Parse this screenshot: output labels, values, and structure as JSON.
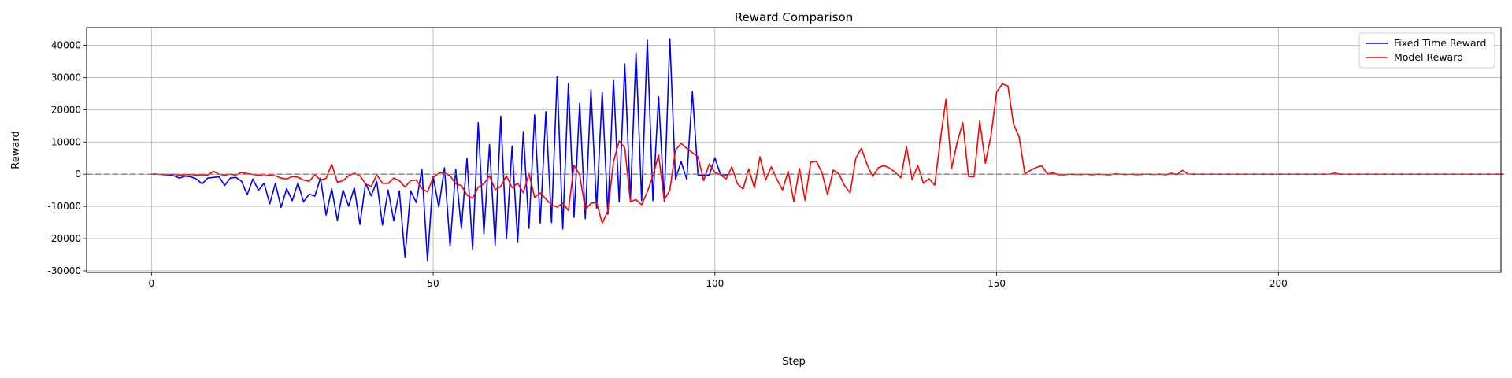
{
  "chart_data": {
    "type": "line",
    "title": "Reward Comparison",
    "xlabel": "Step",
    "ylabel": "Reward",
    "xlim": [
      -11.5,
      239.5
    ],
    "ylim": [
      -30500,
      45500
    ],
    "xticks": [
      0,
      50,
      100,
      150,
      200
    ],
    "yticks": [
      -30000,
      -20000,
      -10000,
      0,
      10000,
      20000,
      30000,
      40000
    ],
    "grid": true,
    "legend_position": "top-right",
    "reference_line": {
      "y": 0,
      "style": "dashed",
      "color": "#808080"
    },
    "series": [
      {
        "name": "Fixed Time Reward",
        "color": "#0000ff",
        "x_start": 0,
        "values": [
          0,
          0,
          -100,
          -300,
          -500,
          -1200,
          -600,
          -800,
          -1500,
          -3000,
          -1200,
          -1000,
          -800,
          -3500,
          -1200,
          -1000,
          -2200,
          -6400,
          -1500,
          -5000,
          -2800,
          -9200,
          -2800,
          -10300,
          -4500,
          -8200,
          -2700,
          -8600,
          -6200,
          -6800,
          -1200,
          -12700,
          -4500,
          -14300,
          -4900,
          -9900,
          -4200,
          -15600,
          -2800,
          -6700,
          -2300,
          -15800,
          -4900,
          -14400,
          -5200,
          -25700,
          -5200,
          -8800,
          1500,
          -26900,
          -800,
          -10200,
          2000,
          -22400,
          1500,
          -16900,
          5000,
          -23300,
          16000,
          -18500,
          9200,
          -22000,
          18000,
          -20100,
          8700,
          -21000,
          13200,
          -16800,
          18400,
          -15200,
          19400,
          -15000,
          30400,
          -17000,
          28100,
          -13400,
          22000,
          -13800,
          26200,
          -10500,
          25400,
          -12400,
          29300,
          -8500,
          34200,
          -8100,
          37700,
          -8200,
          41600,
          -8200,
          24100,
          -8300,
          42000,
          -1600,
          3900,
          -1600,
          25600,
          -300,
          -300,
          -300,
          5100,
          -200,
          -200,
          0
        ]
      },
      {
        "name": "Model Reward",
        "color": "#ff0000",
        "x_start": 0,
        "values": [
          0,
          0,
          -100,
          -200,
          0,
          -300,
          -200,
          -100,
          -300,
          -200,
          -300,
          900,
          0,
          -300,
          0,
          -300,
          500,
          200,
          -100,
          -300,
          -500,
          -300,
          -500,
          -1200,
          -1500,
          -700,
          -900,
          -1800,
          -2200,
          -200,
          -1800,
          -1300,
          3100,
          -2500,
          -2000,
          -500,
          300,
          -500,
          -3000,
          -3800,
          -200,
          -2800,
          -2900,
          -1200,
          -2000,
          -4000,
          -2000,
          -1800,
          -4500,
          -5500,
          -1000,
          300,
          500,
          -500,
          -3000,
          -3500,
          -6500,
          -7500,
          -4000,
          -3000,
          -500,
          -4800,
          -3800,
          -500,
          -4200,
          -2800,
          -5800,
          200,
          -7200,
          -5800,
          -7700,
          -9500,
          -10200,
          -9000,
          -11300,
          2800,
          -200,
          -11000,
          -9000,
          -8800,
          -15200,
          -11400,
          3900,
          10300,
          8200,
          -8500,
          -7900,
          -9500,
          -5500,
          -500,
          6000,
          -8000,
          -5000,
          7500,
          9600,
          8000,
          6700,
          5400,
          -2000,
          3200,
          500,
          -200,
          -1500,
          2300,
          -3000,
          -4600,
          1600,
          -4200,
          5400,
          -1800,
          2300,
          -1600,
          -4900,
          900,
          -8500,
          1800,
          -8100,
          3700,
          4000,
          500,
          -6400,
          1300,
          100,
          -3500,
          -5800,
          5000,
          8000,
          3000,
          -700,
          2000,
          2700,
          1900,
          600,
          -1100,
          8500,
          -1700,
          2700,
          -2800,
          -1400,
          -3400,
          10500,
          23200,
          1800,
          9900,
          16000,
          -700,
          -800,
          16500,
          3400,
          12000,
          25500,
          28000,
          27400,
          15500,
          11500,
          200,
          1200,
          2100,
          2600,
          100,
          400,
          -200,
          -200,
          0,
          -100,
          -100,
          0,
          -200,
          0,
          -100,
          -200,
          100,
          0,
          -100,
          0,
          -200,
          0,
          0,
          -100,
          0,
          -200,
          300,
          -100,
          1200,
          0,
          0,
          0,
          0,
          0,
          0,
          0,
          0,
          0,
          0,
          0,
          0,
          0,
          0,
          0,
          0,
          0,
          0,
          0,
          0,
          0,
          0,
          0,
          0,
          0,
          0,
          300,
          0,
          0,
          0,
          0,
          0,
          0,
          0,
          0,
          0,
          0,
          0,
          0,
          0,
          0,
          0,
          0,
          0,
          0,
          0,
          0,
          0,
          0,
          0,
          0,
          0,
          0,
          0,
          0,
          0,
          0
        ]
      }
    ]
  }
}
